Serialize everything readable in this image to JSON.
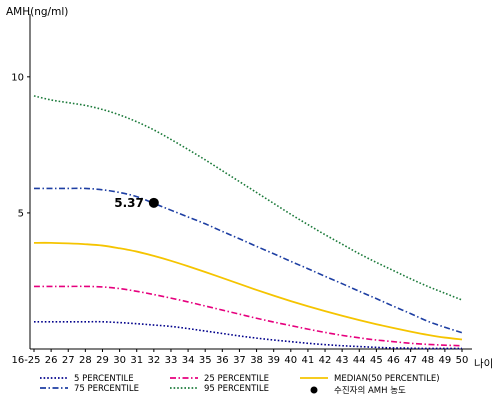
{
  "chart_data": {
    "type": "line",
    "ylabel": "AMH(ng/ml)",
    "xlabel": "나이",
    "categories": [
      "16-25",
      "26",
      "27",
      "28",
      "29",
      "30",
      "31",
      "32",
      "33",
      "34",
      "35",
      "36",
      "37",
      "38",
      "39",
      "40",
      "41",
      "42",
      "43",
      "44",
      "45",
      "46",
      "47",
      "48",
      "49",
      "50"
    ],
    "yticks": [
      5,
      10
    ],
    "ylim": [
      0,
      11.5
    ],
    "grid": false,
    "legend_position": "bottom",
    "series": [
      {
        "name": "5 PERCENTILE",
        "color": "#00008b",
        "style": "dotted",
        "values": [
          1.0,
          1.0,
          1.0,
          1.0,
          1.0,
          0.97,
          0.93,
          0.88,
          0.83,
          0.75,
          0.66,
          0.57,
          0.48,
          0.4,
          0.33,
          0.27,
          0.21,
          0.16,
          0.12,
          0.09,
          0.06,
          0.04,
          0.03,
          0.02,
          0.02,
          0.02
        ]
      },
      {
        "name": "25 PERCENTILE",
        "color": "#e6007e",
        "style": "dashdot",
        "values": [
          2.3,
          2.3,
          2.3,
          2.3,
          2.28,
          2.22,
          2.12,
          2.0,
          1.87,
          1.73,
          1.58,
          1.43,
          1.28,
          1.13,
          0.99,
          0.86,
          0.73,
          0.61,
          0.5,
          0.41,
          0.33,
          0.27,
          0.21,
          0.17,
          0.14,
          0.12
        ]
      },
      {
        "name": "MEDIAN(50 PERCENTILE)",
        "color": "#f5c400",
        "style": "solid",
        "values": [
          3.9,
          3.9,
          3.88,
          3.85,
          3.8,
          3.7,
          3.58,
          3.42,
          3.24,
          3.04,
          2.83,
          2.61,
          2.39,
          2.17,
          1.96,
          1.76,
          1.57,
          1.39,
          1.22,
          1.06,
          0.91,
          0.77,
          0.64,
          0.52,
          0.42,
          0.35
        ]
      },
      {
        "name": "75 PERCENTILE",
        "color": "#1e3fa3",
        "style": "dashdot",
        "values": [
          5.9,
          5.9,
          5.9,
          5.9,
          5.85,
          5.75,
          5.6,
          5.35,
          5.1,
          4.85,
          4.6,
          4.32,
          4.05,
          3.77,
          3.5,
          3.22,
          2.95,
          2.67,
          2.4,
          2.12,
          1.85,
          1.57,
          1.3,
          1.02,
          0.8,
          0.6
        ]
      },
      {
        "name": "95 PERCENTILE",
        "color": "#1b7a3a",
        "style": "dotted",
        "values": [
          9.3,
          9.15,
          9.05,
          8.95,
          8.8,
          8.6,
          8.35,
          8.05,
          7.7,
          7.33,
          6.95,
          6.55,
          6.15,
          5.75,
          5.35,
          4.95,
          4.57,
          4.2,
          3.85,
          3.5,
          3.18,
          2.88,
          2.58,
          2.3,
          2.05,
          1.8
        ]
      }
    ],
    "marker": {
      "name": "수진자의 AMH 농도",
      "x": "32",
      "y": 5.37,
      "label": "5.37",
      "color": "#000000"
    }
  }
}
